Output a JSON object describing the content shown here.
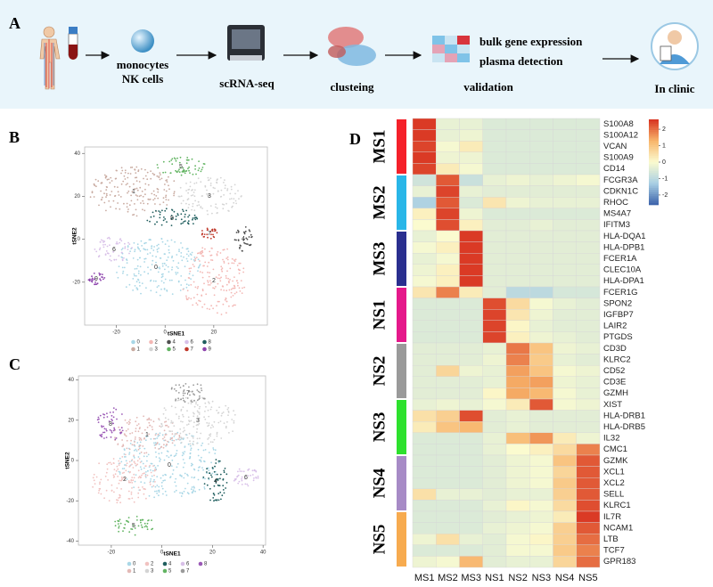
{
  "panel_labels": [
    "A",
    "B",
    "C",
    "D"
  ],
  "workflow": {
    "cells": [
      "monocytes",
      "NK cells"
    ],
    "sequencing": "scRNA-seq",
    "clustering": "clusteing",
    "validation": "validation",
    "validation_methods": [
      "bulk gene expression",
      "plasma detection"
    ],
    "clinic": "In clinic"
  },
  "tsne": [
    {
      "xlabel": "tSNE1",
      "ylabel": "tSNE2",
      "xlim": [
        -33,
        42
      ],
      "ylim": [
        -40,
        43
      ],
      "xticks": [
        -20,
        0,
        20
      ],
      "yticks": [
        -20,
        0,
        20,
        40
      ],
      "clusters": [
        0,
        1,
        2,
        3,
        4,
        5,
        6,
        7,
        8,
        9
      ],
      "colors": [
        "#a9d7e6",
        "#c9aba1",
        "#f3b7b4",
        "#d4d4d4",
        "#505050",
        "#62b462",
        "#d8c0e8",
        "#c0392b",
        "#1f5e5e",
        "#8e44ad"
      ]
    },
    {
      "xlabel": "tSNE1",
      "ylabel": "tSNE2",
      "xlim": [
        -33,
        41
      ],
      "ylim": [
        -42,
        42
      ],
      "xticks": [
        -20,
        0,
        20,
        40
      ],
      "yticks": [
        -40,
        -20,
        0,
        20,
        40
      ],
      "clusters": [
        0,
        1,
        2,
        3,
        4,
        5,
        6,
        7,
        8
      ],
      "colors": [
        "#a9d7e6",
        "#e3b9b6",
        "#f1c2c0",
        "#d4d4d4",
        "#1f5e5e",
        "#62b462",
        "#d8c0e8",
        "#9a9a9a",
        "#9b59b6"
      ]
    }
  ],
  "heatmap": {
    "columns": [
      "MS1",
      "MS2",
      "MS3",
      "NS1",
      "NS2",
      "NS3",
      "NS4",
      "NS5"
    ],
    "colorbar": {
      "lim": [
        -2.6,
        2.6
      ],
      "ticks": [
        2,
        1,
        0,
        -1,
        -2
      ],
      "colors": [
        "#3a62aa",
        "#a9cfe4",
        "#fbfbcf",
        "#f8b46a",
        "#d7301f"
      ]
    },
    "groups": [
      {
        "name": "MS1",
        "color": "#f5212a",
        "genes": [
          "S100A8",
          "S100A12",
          "VCAN",
          "S100A9",
          "CD14"
        ],
        "values": [
          [
            2.5,
            -0.3,
            -0.3,
            -0.5,
            -0.5,
            -0.5,
            -0.5,
            -0.5
          ],
          [
            2.5,
            -0.3,
            -0.2,
            -0.5,
            -0.5,
            -0.5,
            -0.5,
            -0.5
          ],
          [
            2.4,
            -0.1,
            0.3,
            -0.5,
            -0.5,
            -0.5,
            -0.5,
            -0.5
          ],
          [
            2.5,
            -0.2,
            -0.2,
            -0.5,
            -0.5,
            -0.5,
            -0.5,
            -0.5
          ],
          [
            2.4,
            0.3,
            -0.1,
            -0.5,
            -0.5,
            -0.5,
            -0.5,
            -0.5
          ]
        ]
      },
      {
        "name": "MS2",
        "color": "#29b6e8",
        "genes": [
          "FCGR3A",
          "CDKN1C",
          "RHOC",
          "MS4A7",
          "IFITM3"
        ],
        "values": [
          [
            -0.7,
            2.2,
            -0.8,
            -0.3,
            -0.2,
            -0.3,
            -0.2,
            -0.1
          ],
          [
            -0.3,
            2.4,
            -0.3,
            -0.4,
            -0.4,
            -0.4,
            -0.4,
            -0.4
          ],
          [
            -1.2,
            2.2,
            -0.5,
            0.4,
            -0.2,
            -0.3,
            -0.3,
            -0.3
          ],
          [
            0.2,
            2.4,
            -0.2,
            -0.5,
            -0.5,
            -0.5,
            -0.5,
            -0.5
          ],
          [
            0,
            2.3,
            0.2,
            -0.4,
            -0.4,
            -0.3,
            -0.4,
            -0.4
          ]
        ]
      },
      {
        "name": "MS3",
        "color": "#2a2f8f",
        "genes": [
          "HLA-DQA1",
          "HLA-DPB1",
          "FCER1A",
          "CLEC10A",
          "HLA-DPA1"
        ],
        "values": [
          [
            -0.3,
            0,
            2.5,
            -0.4,
            -0.4,
            -0.4,
            -0.4,
            -0.4
          ],
          [
            -0.1,
            0.2,
            2.5,
            -0.4,
            -0.4,
            -0.4,
            -0.4,
            -0.4
          ],
          [
            -0.3,
            -0.1,
            2.5,
            -0.4,
            -0.4,
            -0.4,
            -0.4,
            -0.4
          ],
          [
            -0.2,
            0.2,
            2.5,
            -0.4,
            -0.4,
            -0.4,
            -0.4,
            -0.4
          ],
          [
            -0.1,
            0.2,
            2.5,
            -0.4,
            -0.4,
            -0.4,
            -0.4,
            -0.4
          ]
        ]
      },
      {
        "name": "NS1",
        "color": "#e5198b",
        "genes": [
          "FCER1G",
          "SPON2",
          "IGFBP7",
          "LAIR2",
          "PTGDS"
        ],
        "values": [
          [
            0.4,
            1.8,
            0.3,
            -0.4,
            -1.0,
            -1.0,
            -0.6,
            -0.6
          ],
          [
            -0.5,
            -0.5,
            -0.5,
            2.3,
            0.6,
            -0.1,
            -0.3,
            -0.4
          ],
          [
            -0.5,
            -0.5,
            -0.5,
            2.4,
            0.4,
            -0.2,
            -0.4,
            -0.4
          ],
          [
            -0.5,
            -0.5,
            -0.5,
            2.4,
            0.1,
            -0.3,
            -0.4,
            -0.4
          ],
          [
            -0.5,
            -0.5,
            -0.5,
            2.4,
            0.2,
            -0.2,
            -0.3,
            -0.4
          ]
        ]
      },
      {
        "name": "NS2",
        "color": "#9a9a9a",
        "genes": [
          "CD3D",
          "KLRC2",
          "CD52",
          "CD3E",
          "GZMH"
        ],
        "values": [
          [
            -0.4,
            -0.4,
            -0.4,
            -0.3,
            1.9,
            1.0,
            -0.2,
            -0.3
          ],
          [
            -0.4,
            -0.4,
            -0.4,
            -0.2,
            1.8,
            0.9,
            -0.3,
            -0.4
          ],
          [
            -0.4,
            0.7,
            -0.2,
            -0.3,
            1.5,
            1.0,
            -0.1,
            -0.2
          ],
          [
            -0.4,
            -0.4,
            -0.4,
            -0.3,
            1.4,
            1.5,
            -0.2,
            -0.3
          ],
          [
            -0.4,
            -0.4,
            -0.4,
            0.1,
            1.4,
            1.2,
            -0.1,
            -0.3
          ]
        ]
      },
      {
        "name": "NS3",
        "color": "#2ee12e",
        "genes": [
          "XIST",
          "HLA-DRB1",
          "HLA-DRB5",
          "IL32",
          "CMC1"
        ],
        "values": [
          [
            -0.3,
            -0.2,
            -0.3,
            -0.1,
            0.3,
            2.2,
            -0.1,
            -0.2
          ],
          [
            0.5,
            0.8,
            2.3,
            -0.4,
            -0.3,
            -0.4,
            -0.4,
            -0.4
          ],
          [
            0.3,
            1.0,
            1.2,
            -0.4,
            -0.3,
            -0.4,
            -0.4,
            -0.4
          ],
          [
            -0.5,
            -0.5,
            -0.5,
            -0.3,
            1.1,
            1.6,
            0.3,
            -0.2
          ],
          [
            -0.5,
            -0.5,
            -0.5,
            -0.3,
            0,
            0.2,
            0.6,
            1.8
          ]
        ]
      },
      {
        "name": "NS4",
        "color": "#a78bc6",
        "genes": [
          "GZMK",
          "XCL1",
          "XCL2",
          "SELL",
          "KLRC1"
        ],
        "values": [
          [
            -0.5,
            -0.5,
            -0.5,
            -0.4,
            -0.2,
            -0.1,
            1.0,
            2.2
          ],
          [
            -0.5,
            -0.5,
            -0.5,
            -0.4,
            -0.2,
            -0.1,
            0.7,
            2.2
          ],
          [
            -0.5,
            -0.5,
            -0.5,
            -0.4,
            -0.2,
            -0.1,
            0.9,
            2.2
          ],
          [
            0.5,
            -0.3,
            -0.3,
            -0.4,
            -0.3,
            -0.3,
            0.8,
            2.2
          ],
          [
            -0.5,
            -0.5,
            -0.5,
            -0.3,
            0.1,
            -0.1,
            0.6,
            2.3
          ]
        ]
      },
      {
        "name": "NS5",
        "color": "#f7ab4f",
        "genes": [
          "IL7R",
          "NCAM1",
          "LTB",
          "TCF7",
          "GPR183"
        ],
        "values": [
          [
            -0.5,
            -0.5,
            -0.5,
            -0.4,
            -0.3,
            -0.2,
            0.3,
            2.5
          ],
          [
            -0.5,
            -0.5,
            -0.5,
            -0.3,
            -0.2,
            -0.1,
            0.8,
            2.2
          ],
          [
            -0.2,
            0.5,
            -0.3,
            -0.4,
            -0.1,
            0.1,
            0.8,
            2.0
          ],
          [
            -0.5,
            -0.5,
            -0.5,
            -0.4,
            -0.1,
            -0.1,
            0.9,
            1.8
          ],
          [
            -0.2,
            -0.1,
            1.2,
            -0.4,
            -0.3,
            -0.3,
            0.7,
            2.0
          ]
        ]
      }
    ]
  }
}
